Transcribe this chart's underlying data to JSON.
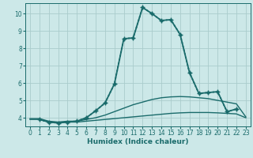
{
  "xlabel": "Humidex (Indice chaleur)",
  "background_color": "#cce8e8",
  "grid_color": "#aacccc",
  "line_color": "#1a6b6b",
  "xlim": [
    -0.5,
    23.5
  ],
  "ylim": [
    3.5,
    10.6
  ],
  "yticks": [
    4,
    5,
    6,
    7,
    8,
    9,
    10
  ],
  "xticks": [
    0,
    1,
    2,
    3,
    4,
    5,
    6,
    7,
    8,
    9,
    10,
    11,
    12,
    13,
    14,
    15,
    16,
    17,
    18,
    19,
    20,
    21,
    22,
    23
  ],
  "lines": [
    {
      "x": [
        0,
        1,
        2,
        3,
        4,
        5,
        6,
        7,
        8,
        9,
        10,
        11,
        12,
        13,
        14,
        15,
        16,
        17,
        18,
        19,
        20,
        21,
        22,
        23
      ],
      "y": [
        3.9,
        3.9,
        3.75,
        3.7,
        3.75,
        3.75,
        3.8,
        3.85,
        3.9,
        3.95,
        4.0,
        4.05,
        4.1,
        4.15,
        4.2,
        4.25,
        4.28,
        4.3,
        4.3,
        4.3,
        4.28,
        4.25,
        4.22,
        4.0
      ],
      "style": "-",
      "marker": null,
      "lw": 1.0
    },
    {
      "x": [
        0,
        1,
        2,
        3,
        4,
        5,
        6,
        7,
        8,
        9,
        10,
        11,
        12,
        13,
        14,
        15,
        16,
        17,
        18,
        19,
        20,
        21,
        22,
        23
      ],
      "y": [
        3.95,
        3.95,
        3.8,
        3.75,
        3.8,
        3.8,
        3.9,
        4.0,
        4.15,
        4.35,
        4.55,
        4.75,
        4.9,
        5.05,
        5.15,
        5.2,
        5.22,
        5.2,
        5.15,
        5.1,
        5.0,
        4.9,
        4.8,
        4.05
      ],
      "style": "-",
      "marker": null,
      "lw": 1.0
    },
    {
      "x": [
        1,
        2,
        3,
        4,
        5,
        6,
        7,
        8,
        9,
        10,
        11,
        12,
        13,
        14,
        15,
        16,
        17,
        18,
        19,
        20,
        21,
        22
      ],
      "y": [
        3.9,
        3.75,
        3.7,
        3.75,
        3.8,
        4.0,
        4.4,
        4.85,
        5.95,
        8.55,
        8.6,
        10.35,
        10.0,
        9.6,
        9.65,
        8.8,
        6.6,
        5.4,
        5.45,
        5.5,
        4.35,
        4.5
      ],
      "style": ":",
      "marker": "D",
      "lw": 1.3
    },
    {
      "x": [
        1,
        2,
        3,
        4,
        5,
        6,
        7,
        8,
        9,
        10,
        11,
        12,
        13,
        14,
        15,
        16,
        17,
        18,
        19,
        20,
        21,
        22
      ],
      "y": [
        3.9,
        3.75,
        3.7,
        3.75,
        3.8,
        4.0,
        4.4,
        4.85,
        5.95,
        8.55,
        8.6,
        10.35,
        10.0,
        9.6,
        9.65,
        8.8,
        6.6,
        5.4,
        5.45,
        5.5,
        4.35,
        4.5
      ],
      "style": "-",
      "marker": "+",
      "lw": 1.3
    }
  ]
}
